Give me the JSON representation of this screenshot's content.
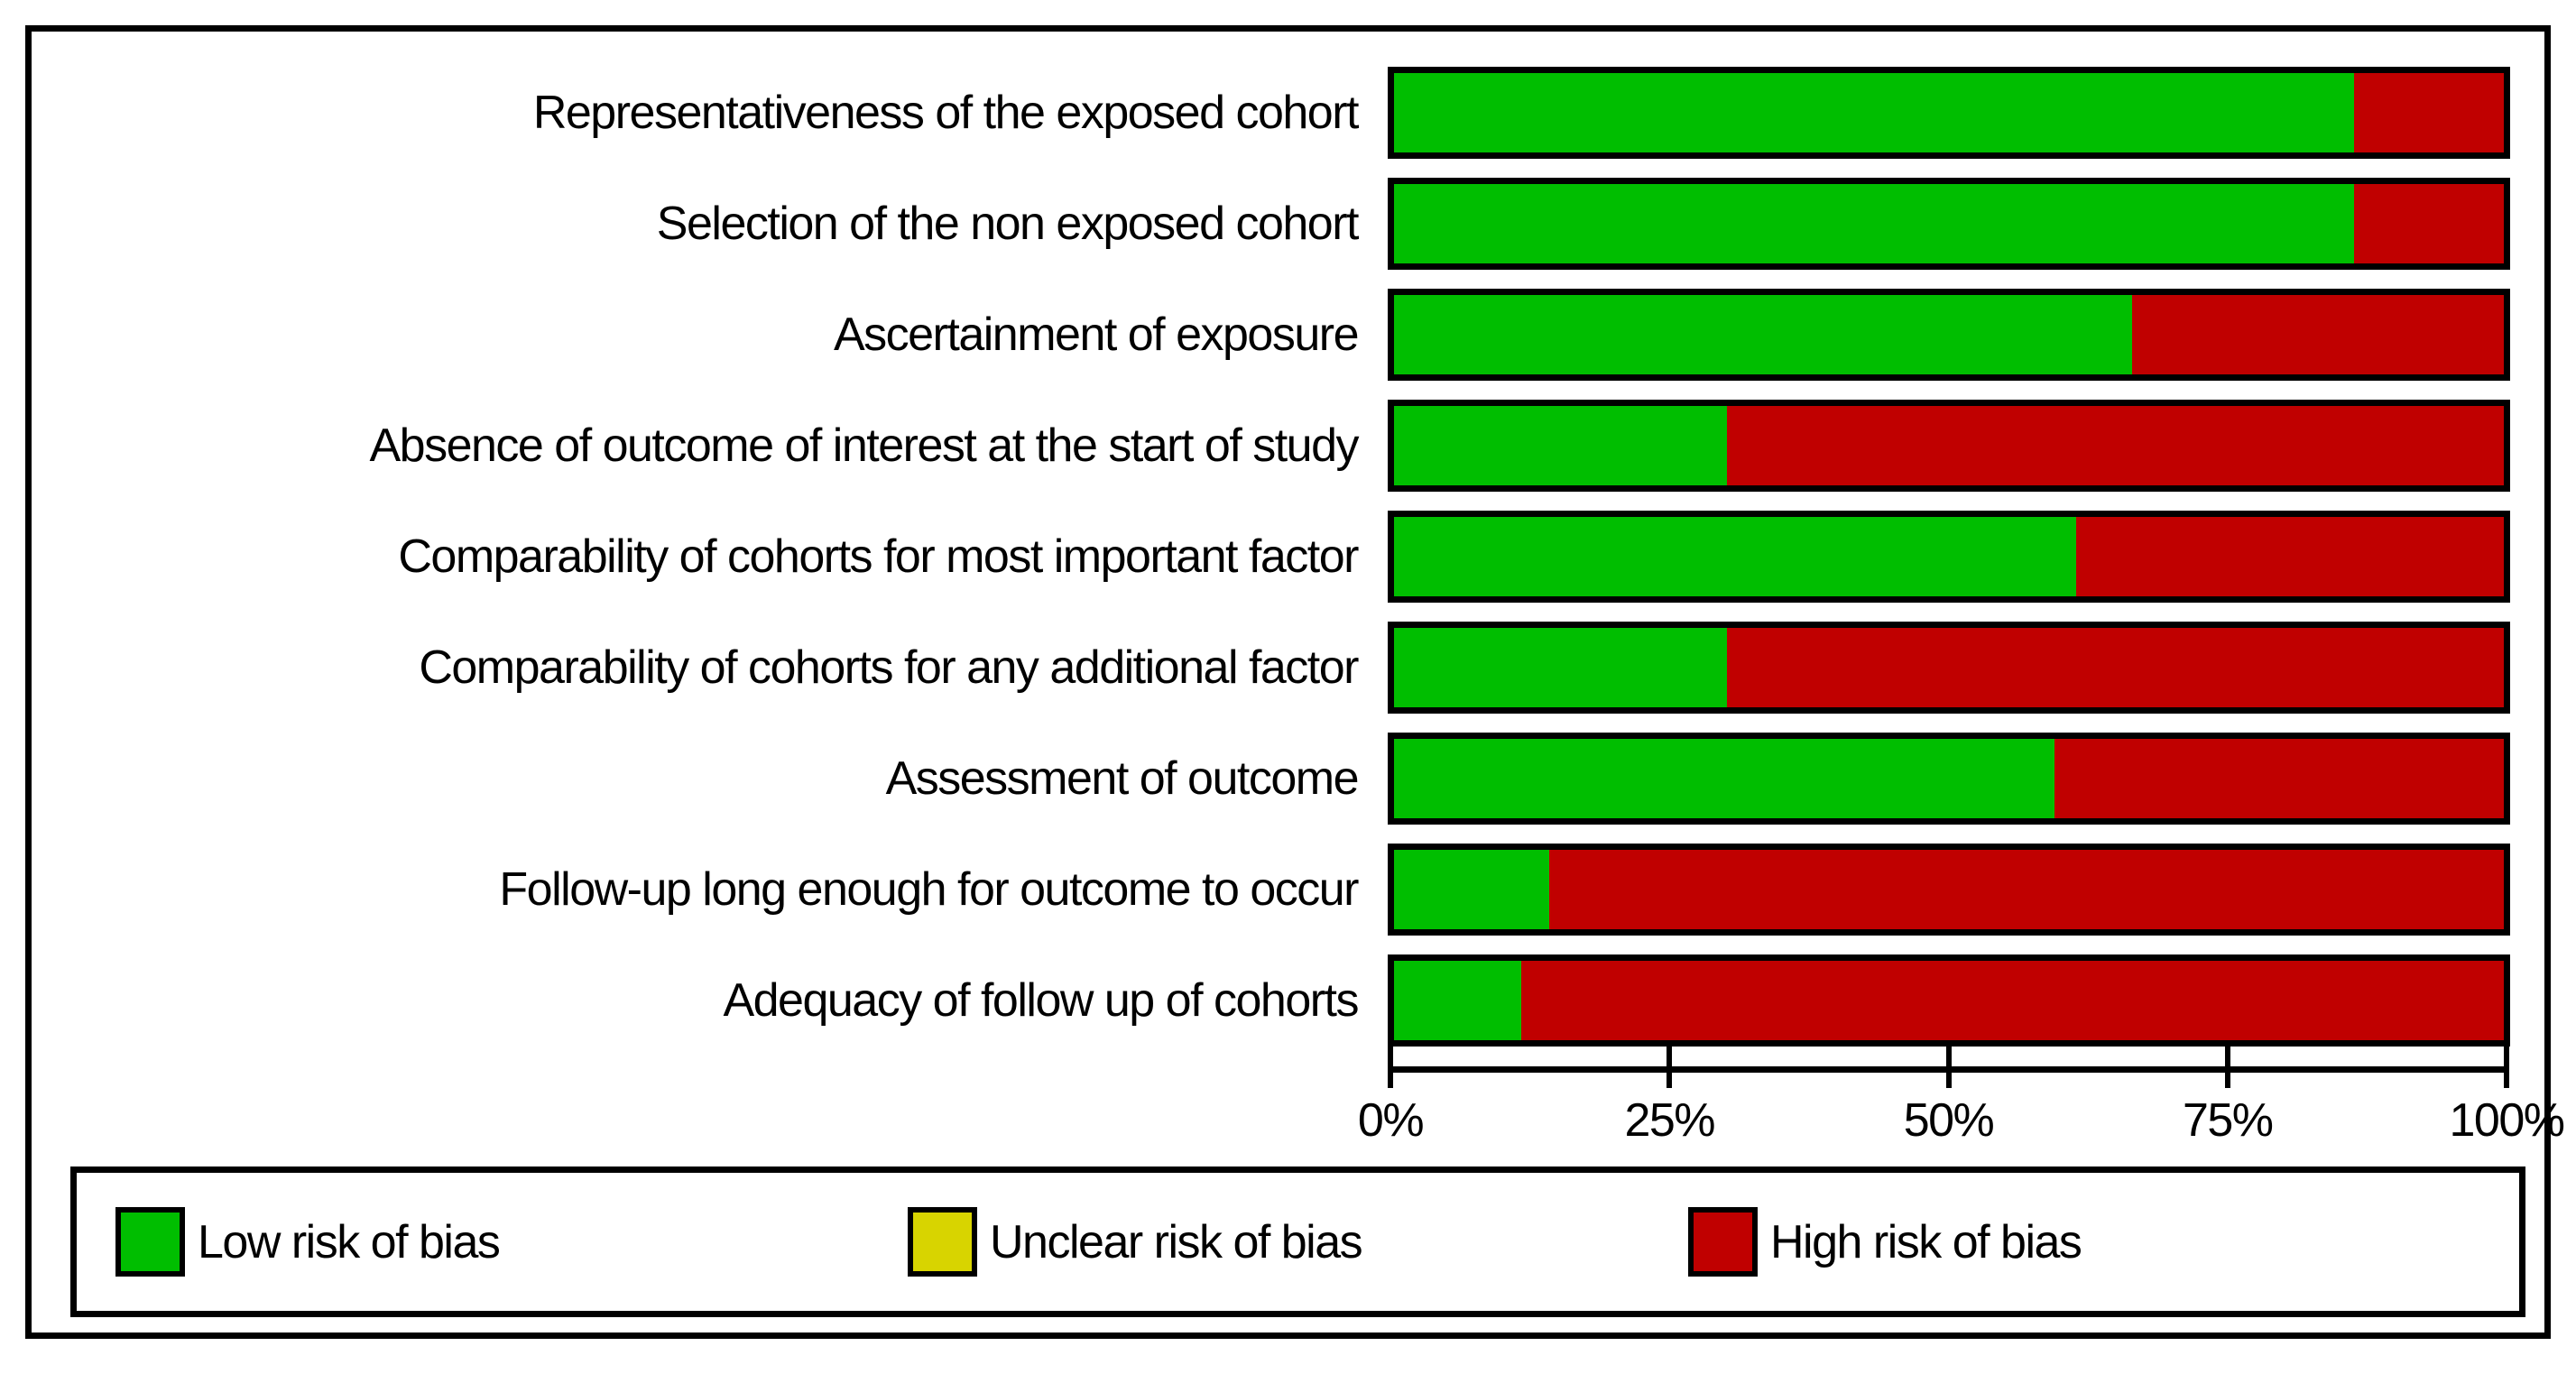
{
  "figure": {
    "title": "",
    "axis": {
      "tick_labels": [
        "0%",
        "25%",
        "50%",
        "75%",
        "100%"
      ]
    },
    "legend": {
      "items": [
        {
          "label": "Low risk of bias",
          "color": "#00BE00"
        },
        {
          "label": "Unclear risk of bias",
          "color": "#D8D400"
        },
        {
          "label": "High risk of bias",
          "color": "#C00000"
        }
      ]
    }
  },
  "chart_data": {
    "type": "bar",
    "orientation": "horizontal",
    "stacked": true,
    "title": "",
    "xlabel": "",
    "ylabel": "",
    "xlim": [
      0,
      100
    ],
    "x_ticks": [
      "0%",
      "25%",
      "50%",
      "75%",
      "100%"
    ],
    "grid": false,
    "legend_position": "bottom",
    "categories": [
      "Representativeness of the exposed cohort",
      "Selection of the non exposed cohort",
      "Ascertainment of exposure",
      "Absence of outcome of interest at the start of study",
      "Comparability of cohorts for most important factor",
      "Comparability of cohorts for any additional factor",
      "Assessment of outcome",
      "Follow-up long enough for outcome to occur",
      "Adequacy of follow up of cohorts"
    ],
    "series": [
      {
        "name": "Low risk of bias",
        "color": "#00BE00",
        "values": [
          86.5,
          86.5,
          66.5,
          30,
          61.5,
          30,
          59.5,
          14,
          11.5
        ]
      },
      {
        "name": "Unclear risk of bias",
        "color": "#D8D400",
        "values": [
          0,
          0,
          0,
          0,
          0,
          0,
          0,
          0,
          0
        ]
      },
      {
        "name": "High risk of bias",
        "color": "#C00000",
        "values": [
          13.5,
          13.5,
          33.5,
          70,
          38.5,
          70,
          40.5,
          86,
          88.5
        ]
      }
    ]
  }
}
